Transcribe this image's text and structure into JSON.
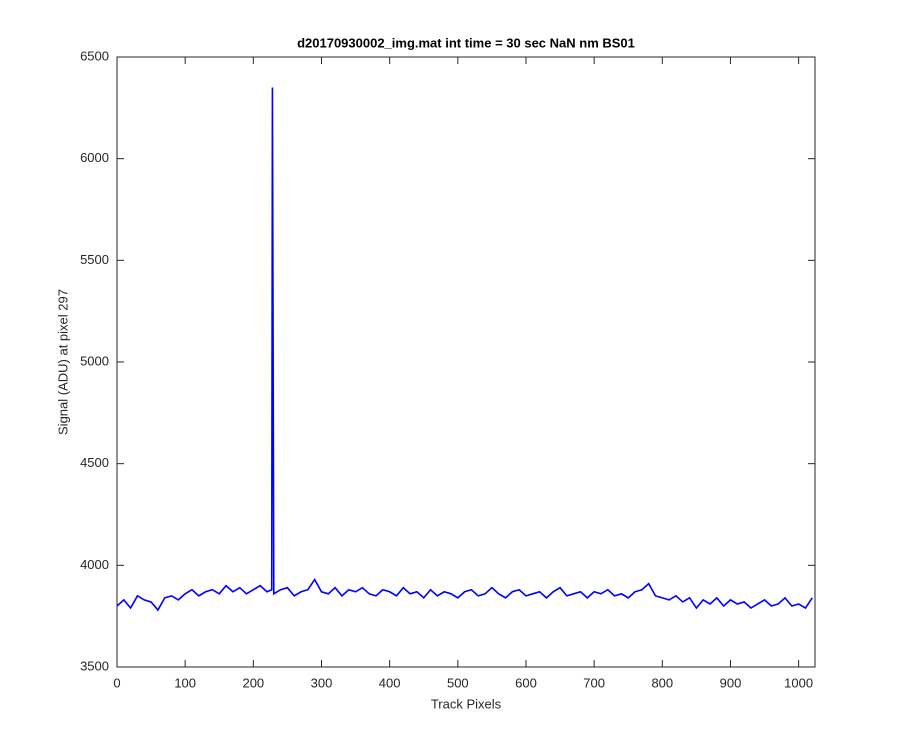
{
  "chart_data": {
    "type": "line",
    "title": "d20170930002_img.mat int time = 30 sec  NaN nm BS01",
    "x_label": "Track Pixels",
    "y_label": "Signal (ADU) at pixel 297",
    "x": [
      0,
      10,
      20,
      30,
      40,
      50,
      60,
      70,
      80,
      90,
      100,
      110,
      120,
      130,
      140,
      150,
      160,
      170,
      180,
      190,
      200,
      210,
      220,
      227,
      228,
      230,
      240,
      250,
      260,
      270,
      280,
      290,
      300,
      310,
      320,
      330,
      340,
      350,
      360,
      370,
      380,
      390,
      400,
      410,
      420,
      430,
      440,
      450,
      460,
      470,
      480,
      490,
      500,
      510,
      520,
      530,
      540,
      550,
      560,
      570,
      580,
      590,
      600,
      610,
      620,
      630,
      640,
      650,
      660,
      670,
      680,
      690,
      700,
      710,
      720,
      730,
      740,
      750,
      760,
      770,
      780,
      790,
      800,
      810,
      820,
      830,
      840,
      850,
      860,
      870,
      880,
      890,
      900,
      910,
      920,
      930,
      940,
      950,
      960,
      970,
      980,
      990,
      1000,
      1010,
      1020
    ],
    "series": [
      {
        "color": "#0000ff",
        "values": [
          3800,
          3830,
          3790,
          3850,
          3830,
          3820,
          3780,
          3840,
          3850,
          3830,
          3860,
          3880,
          3850,
          3870,
          3880,
          3860,
          3900,
          3870,
          3890,
          3860,
          3880,
          3900,
          3870,
          3880,
          6350,
          3860,
          3880,
          3890,
          3850,
          3870,
          3880,
          3930,
          3870,
          3860,
          3890,
          3850,
          3880,
          3870,
          3890,
          3860,
          3850,
          3880,
          3870,
          3850,
          3890,
          3860,
          3870,
          3840,
          3880,
          3850,
          3870,
          3860,
          3840,
          3870,
          3880,
          3850,
          3860,
          3890,
          3860,
          3840,
          3870,
          3880,
          3850,
          3860,
          3870,
          3840,
          3870,
          3890,
          3850,
          3860,
          3870,
          3840,
          3870,
          3860,
          3880,
          3850,
          3860,
          3840,
          3870,
          3880,
          3910,
          3850,
          3840,
          3830,
          3850,
          3820,
          3840,
          3790,
          3830,
          3810,
          3840,
          3800,
          3830,
          3810,
          3820,
          3790,
          3810,
          3830,
          3800,
          3810,
          3840,
          3800,
          3810,
          3790,
          3840
        ]
      }
    ],
    "xlim": [
      0,
      1024
    ],
    "ylim": [
      3500,
      6500
    ],
    "xticks": [
      0,
      100,
      200,
      300,
      400,
      500,
      600,
      700,
      800,
      900,
      1000
    ],
    "yticks": [
      3500,
      4000,
      4500,
      5000,
      5500,
      6000,
      6500
    ]
  }
}
